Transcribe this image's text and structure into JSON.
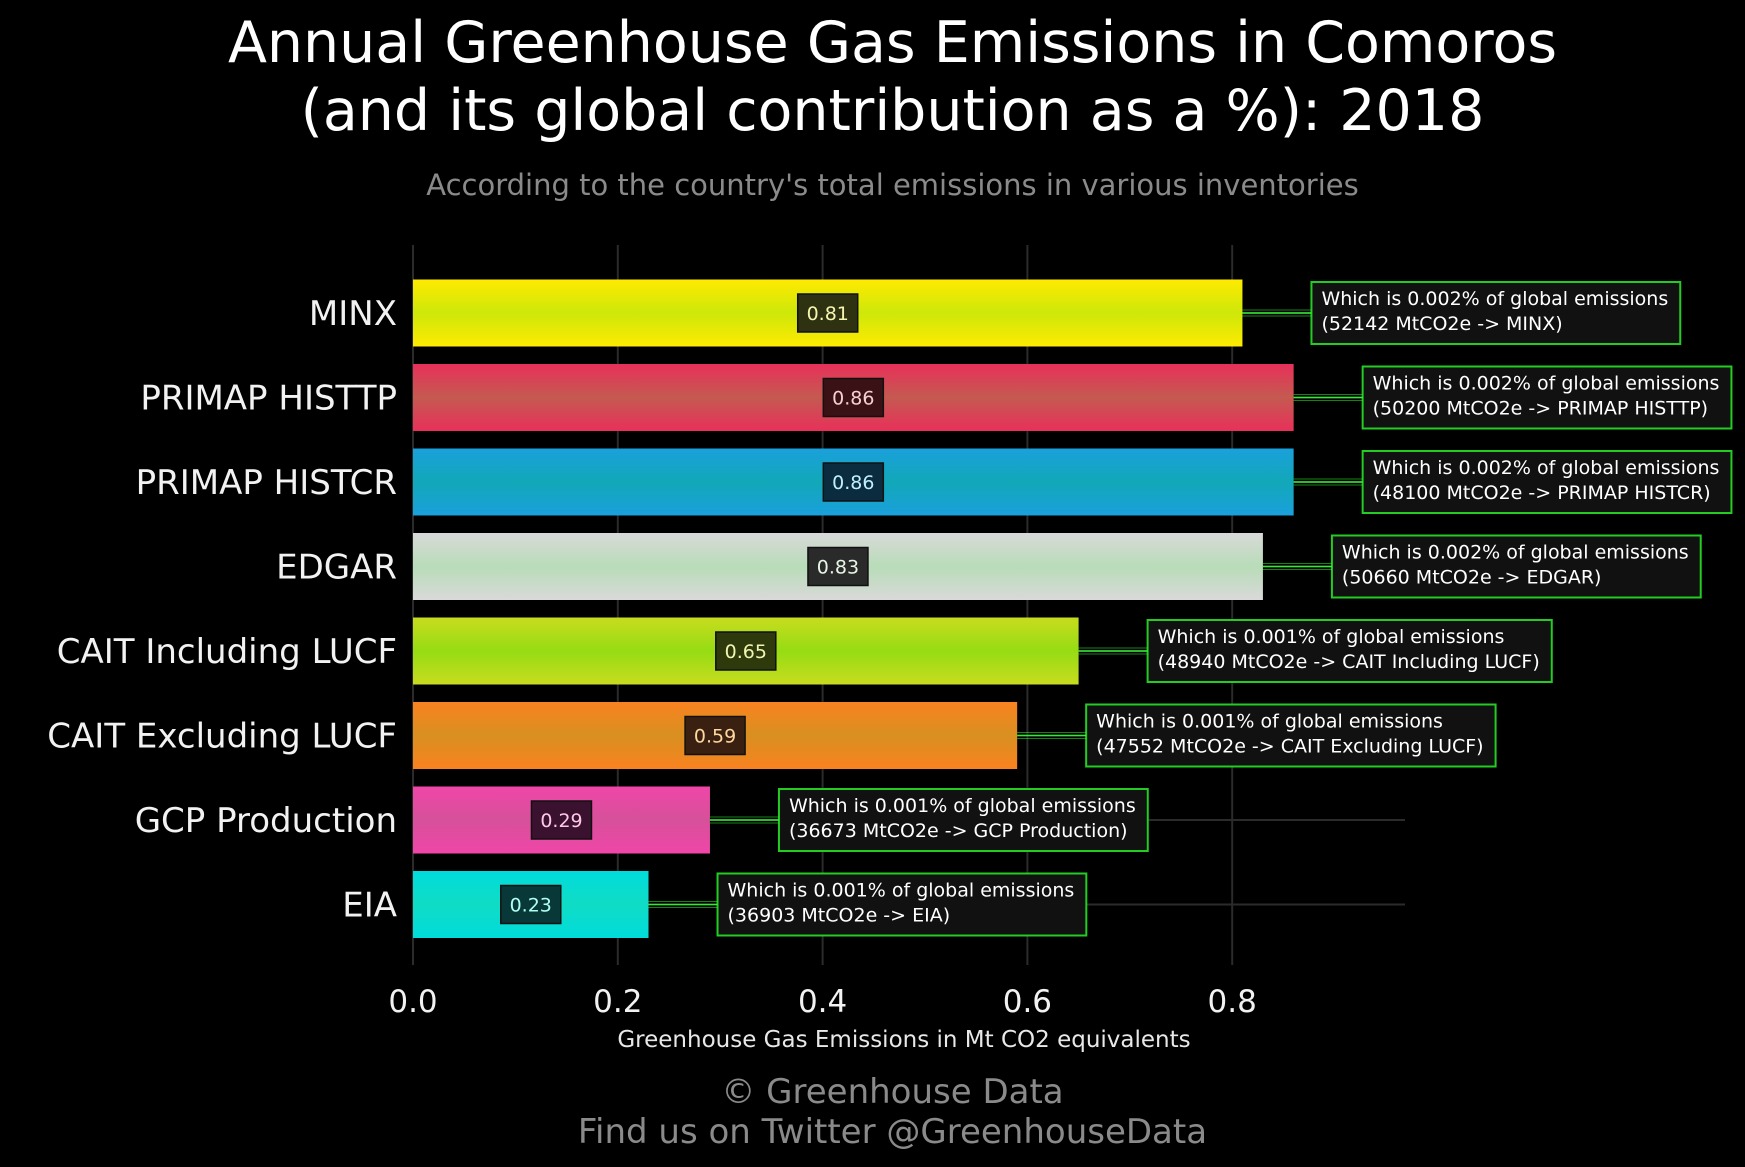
{
  "page": {
    "title_line1": "Annual Greenhouse Gas Emissions in Comoros",
    "title_line2": "(and its global contribution as a %): 2018",
    "subtitle": "According to the country's total emissions in various inventories",
    "footer_line1": "© Greenhouse Data",
    "footer_line2": "Find us on Twitter @GreenhouseData"
  },
  "colors": {
    "background": "#000000",
    "annotation_border": "#22cc22",
    "connector": "#33ff33",
    "grid": "#2b2b2b"
  },
  "chart_data": {
    "type": "bar",
    "orientation": "horizontal",
    "title": "Annual Greenhouse Gas Emissions in Comoros (and its global contribution as a %): 2018",
    "subtitle": "According to the country's total emissions in various inventories",
    "xlabel": "Greenhouse Gas Emissions in Mt CO2 equivalents",
    "ylabel": "",
    "xlim": [
      0,
      0.97
    ],
    "x_ticks": [
      0.0,
      0.2,
      0.4,
      0.6,
      0.8
    ],
    "x_tick_labels": [
      "0.0",
      "0.2",
      "0.4",
      "0.6",
      "0.8"
    ],
    "grid": true,
    "categories": [
      "MINX",
      "PRIMAP HISTTP",
      "PRIMAP HISTCR",
      "EDGAR",
      "CAIT Including LUCF",
      "CAIT Excluding LUCF",
      "GCP Production",
      "EIA"
    ],
    "values": [
      0.81,
      0.86,
      0.86,
      0.83,
      0.65,
      0.59,
      0.29,
      0.23
    ],
    "value_labels": [
      "0.81",
      "0.86",
      "0.86",
      "0.83",
      "0.65",
      "0.59",
      "0.29",
      "0.23"
    ],
    "bar_colors": [
      "#ffea00",
      "#e8305a",
      "#1aa0dc",
      "#d9d9d9",
      "#c8dc1e",
      "#fa8220",
      "#f046a8",
      "#00dcdc"
    ],
    "bar_center_colors": [
      "#cde80a",
      "#c45a50",
      "#12a8b8",
      "#b8dcb8",
      "#96dc14",
      "#d89020",
      "#d6509a",
      "#10dcc4"
    ],
    "value_box_colors": [
      "#2e3210",
      "#3a1216",
      "#0b2c3e",
      "#2a2a2a",
      "#2e3a0c",
      "#3a2010",
      "#3a1230",
      "#083838"
    ],
    "value_text_colors": [
      "#f5f5b0",
      "#f5d0d0",
      "#bfefff",
      "#e6f5e6",
      "#f0f5b0",
      "#ffd8a0",
      "#ffc8e8",
      "#b0fff5"
    ],
    "annotations": [
      {
        "line1": "Which is 0.002% of global emissions",
        "line2": "(52142 MtCO2e -> MINX)"
      },
      {
        "line1": "Which is 0.002% of global emissions",
        "line2": "(50200 MtCO2e -> PRIMAP HISTTP)"
      },
      {
        "line1": "Which is 0.002% of global emissions",
        "line2": "(48100 MtCO2e -> PRIMAP HISTCR)"
      },
      {
        "line1": "Which is 0.002% of global emissions",
        "line2": "(50660 MtCO2e -> EDGAR)"
      },
      {
        "line1": "Which is 0.001% of global emissions",
        "line2": "(48940 MtCO2e -> CAIT Including LUCF)"
      },
      {
        "line1": "Which is 0.001% of global emissions",
        "line2": "(47552 MtCO2e -> CAIT Excluding LUCF)"
      },
      {
        "line1": "Which is 0.001% of global emissions",
        "line2": "(36673 MtCO2e -> GCP Production)"
      },
      {
        "line1": "Which is 0.001% of global emissions",
        "line2": "(36903 MtCO2e -> EIA)"
      }
    ]
  }
}
